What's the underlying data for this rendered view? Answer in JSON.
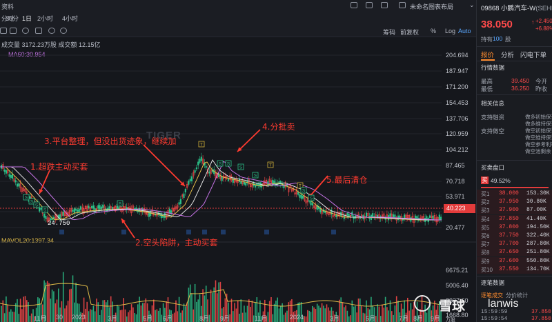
{
  "window": {
    "title_fragment": "资料",
    "layout_menu": "未命名图表布局"
  },
  "periods": [
    "分时",
    "30分",
    "1日",
    "2小时",
    "4小时"
  ],
  "chart_tools": {
    "right_items": [
      "筹码",
      "前复权",
      "%",
      "Log",
      "Auto"
    ]
  },
  "volume_info": "成交量 3172.23万股 成交额 12.15亿",
  "ma_label": "MA60:30.954",
  "mavol_label": "MAVOL20:1397.34",
  "price_axis": [
    "204.694",
    "187.947",
    "171.200",
    "154.453",
    "137.706",
    "120.959",
    "104.212",
    "87.465",
    "70.718",
    "53.971",
    "40.223",
    "20.477"
  ],
  "volume_axis": [
    "6675.21",
    "5006.40",
    "3337.60",
    "1668.80"
  ],
  "volume_unit": "万股",
  "low_marker": "24.750",
  "time_axis": [
    "11月",
    "30",
    "2023",
    "3月",
    "5月",
    "6月",
    "8月",
    "9月",
    "11月",
    "2024",
    "3月",
    "5月",
    "7月",
    "8月",
    "9月"
  ],
  "annotations": {
    "a1": "1.超跌主动买套",
    "a2": "2.空头陷阱，主动买套",
    "a3": "3.平台整理，但没出货迹象，继续加",
    "a4": "4.分批卖",
    "a5": "5.最后清仓"
  },
  "markers": {
    "buy": "B",
    "sell": "S",
    "target": "T"
  },
  "watermark": "TIGER",
  "stock": {
    "code_name": "09868 小鹏汽车-W",
    "code_name_suffix": "(SEHK)",
    "price": "38.050",
    "change": "+2.450",
    "change_pct": "+6.88%",
    "holding_label": "持有",
    "holding_qty": "100",
    "holding_unit": "股"
  },
  "right_tabs": [
    "报价",
    "分析",
    "闪电下单"
  ],
  "quote": {
    "title": "行情数据",
    "high_label": "最高",
    "high_value": "39.450",
    "high_extra": "今开",
    "low_label": "最低",
    "low_value": "36.250",
    "low_extra": "昨收"
  },
  "related": {
    "title": "相关信息",
    "margin_label": "支持融资",
    "short_label": "支持做空",
    "items": [
      "做多初始保证",
      "做多维持保证",
      "做空初始保证",
      "做空维持保证",
      "做空参考利率",
      "做空池剩余"
    ]
  },
  "orderbook": {
    "title": "买卖盘口",
    "ratio_badge": "买",
    "ratio": "49.52%",
    "rows": [
      {
        "label": "买1",
        "price": "38.000",
        "qty": "153.30K"
      },
      {
        "label": "买2",
        "price": "37.950",
        "qty": "30.80K"
      },
      {
        "label": "买3",
        "price": "37.900",
        "qty": "87.00K"
      },
      {
        "label": "买4",
        "price": "37.850",
        "qty": "41.40K"
      },
      {
        "label": "买5",
        "price": "37.800",
        "qty": "194.50K"
      },
      {
        "label": "买6",
        "price": "37.750",
        "qty": "322.40K"
      },
      {
        "label": "买7",
        "price": "37.700",
        "qty": "287.80K"
      },
      {
        "label": "买8",
        "price": "37.650",
        "qty": "251.80K"
      },
      {
        "label": "买9",
        "price": "37.600",
        "qty": "550.80K"
      },
      {
        "label": "买10",
        "price": "37.550",
        "qty": "134.70K"
      }
    ]
  },
  "trades": {
    "title": "逐笔数据",
    "tabs": [
      "逐笔成交",
      "分价统计"
    ],
    "rows": [
      {
        "time": "15:59:59",
        "price": "37.850"
      },
      {
        "time": "15:59:54",
        "price": "37.850"
      }
    ]
  },
  "site_watermark": {
    "brand": "雪球",
    "user": "lanwis"
  },
  "colors": {
    "bg": "#15171c",
    "up": "#ff4a4a",
    "down": "#2bc38a",
    "annotation": "#ff3b30",
    "ma_yellow": "#e6c04a",
    "ma_purple": "#c774e8"
  }
}
